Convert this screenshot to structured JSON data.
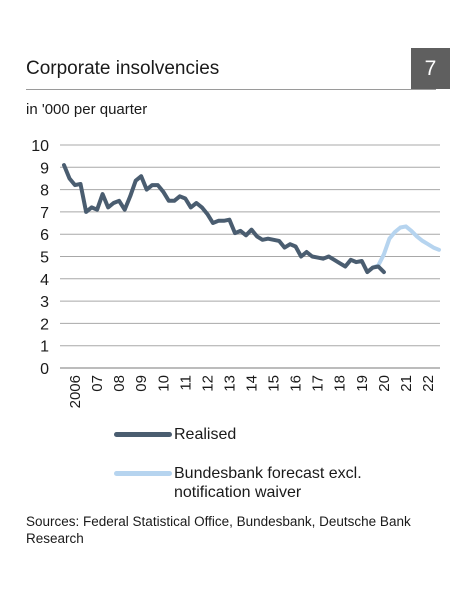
{
  "header": {
    "title": "Corporate insolvencies",
    "figure_number": "7",
    "unit": "in '000 per quarter"
  },
  "chart_data": {
    "type": "line",
    "title": "Corporate insolvencies",
    "ylabel": "in '000 per quarter",
    "xlabel": "",
    "ylim": [
      0,
      10
    ],
    "yticks": [
      0,
      1,
      2,
      3,
      4,
      5,
      6,
      7,
      8,
      9,
      10
    ],
    "xlim": [
      2006,
      2023
    ],
    "xticks": [
      {
        "year": 2006,
        "label": "2006"
      },
      {
        "year": 2007,
        "label": "07"
      },
      {
        "year": 2008,
        "label": "08"
      },
      {
        "year": 2009,
        "label": "09"
      },
      {
        "year": 2010,
        "label": "10"
      },
      {
        "year": 2011,
        "label": "11"
      },
      {
        "year": 2012,
        "label": "12"
      },
      {
        "year": 2013,
        "label": "13"
      },
      {
        "year": 2014,
        "label": "14"
      },
      {
        "year": 2015,
        "label": "15"
      },
      {
        "year": 2016,
        "label": "16"
      },
      {
        "year": 2017,
        "label": "17"
      },
      {
        "year": 2018,
        "label": "18"
      },
      {
        "year": 2019,
        "label": "19"
      },
      {
        "year": 2020,
        "label": "20"
      },
      {
        "year": 2021,
        "label": "21"
      },
      {
        "year": 2022,
        "label": "22"
      }
    ],
    "grid": true,
    "legend_position": "bottom",
    "series": [
      {
        "name": "Realised",
        "color": "#4a5d70",
        "x": [
          2006.0,
          2006.25,
          2006.5,
          2006.75,
          2007.0,
          2007.25,
          2007.5,
          2007.75,
          2008.0,
          2008.25,
          2008.5,
          2008.75,
          2009.0,
          2009.25,
          2009.5,
          2009.75,
          2010.0,
          2010.25,
          2010.5,
          2010.75,
          2011.0,
          2011.25,
          2011.5,
          2011.75,
          2012.0,
          2012.25,
          2012.5,
          2012.75,
          2013.0,
          2013.25,
          2013.5,
          2013.75,
          2014.0,
          2014.25,
          2014.5,
          2014.75,
          2015.0,
          2015.25,
          2015.5,
          2015.75,
          2016.0,
          2016.25,
          2016.5,
          2016.75,
          2017.0,
          2017.25,
          2017.5,
          2017.75,
          2018.0,
          2018.25,
          2018.5,
          2018.75,
          2019.0,
          2019.25,
          2019.5,
          2019.75,
          2020.0,
          2020.25,
          2020.5
        ],
        "y": [
          9.1,
          8.5,
          8.2,
          8.25,
          7.0,
          7.2,
          7.1,
          7.8,
          7.2,
          7.4,
          7.5,
          7.1,
          7.7,
          8.4,
          8.6,
          8.0,
          8.2,
          8.2,
          7.9,
          7.5,
          7.5,
          7.7,
          7.6,
          7.2,
          7.4,
          7.2,
          6.9,
          6.5,
          6.6,
          6.6,
          6.65,
          6.05,
          6.15,
          5.95,
          6.2,
          5.9,
          5.75,
          5.8,
          5.75,
          5.7,
          5.4,
          5.55,
          5.45,
          5.0,
          5.2,
          5.0,
          4.95,
          4.9,
          5.0,
          4.85,
          4.7,
          4.55,
          4.85,
          4.75,
          4.8,
          4.3,
          4.5,
          4.55,
          4.3
        ]
      },
      {
        "name": "Bundesbank forecast excl. notification waiver",
        "color": "#b6d4ef",
        "x": [
          2020.0,
          2020.25,
          2020.5,
          2020.75,
          2021.0,
          2021.25,
          2021.5,
          2021.75,
          2022.0,
          2022.25,
          2022.5,
          2022.75,
          2023.0
        ],
        "y": [
          4.5,
          4.6,
          5.1,
          5.8,
          6.1,
          6.3,
          6.35,
          6.15,
          5.9,
          5.7,
          5.55,
          5.4,
          5.3
        ]
      }
    ]
  },
  "legend": {
    "items": [
      {
        "label": "Realised",
        "color": "#4a5d70"
      },
      {
        "label": "Bundesbank forecast excl. notification waiver",
        "color": "#b6d4ef"
      }
    ]
  },
  "footer": {
    "source": "Sources: Federal Statistical Office, Bundesbank, Deutsche Bank Research"
  }
}
